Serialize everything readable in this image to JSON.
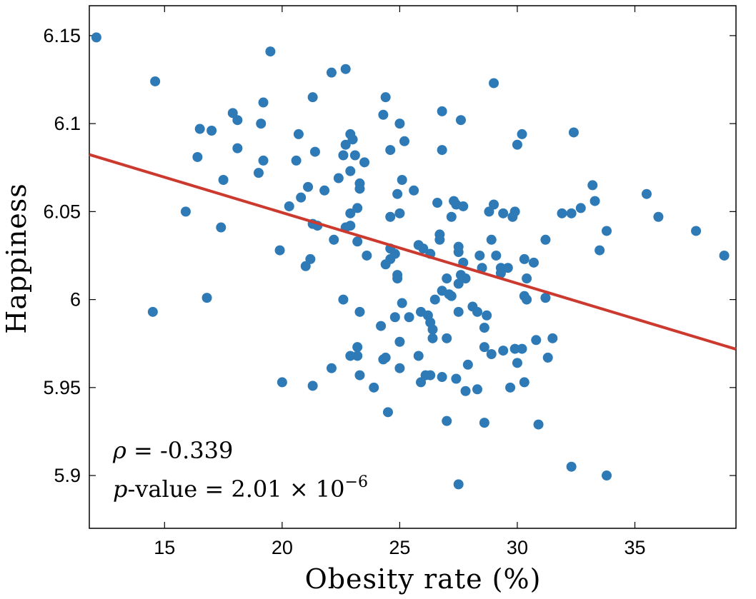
{
  "chart_data": {
    "type": "scatter",
    "title": "",
    "xlabel": "Obesity rate (%)",
    "ylabel": "Happiness",
    "xlim": [
      11.8,
      39.3
    ],
    "ylim": [
      5.87,
      6.167
    ],
    "xticks": [
      15,
      20,
      25,
      30,
      35
    ],
    "xtick_labels": [
      "15",
      "20",
      "25",
      "30",
      "35"
    ],
    "yticks": [
      5.9,
      5.95,
      6.0,
      6.05,
      6.1,
      6.15
    ],
    "ytick_labels": [
      "5.9",
      "5.95",
      "6",
      "6.05",
      "6.1",
      "6.15"
    ],
    "grid": false,
    "colors": {
      "points": "#2e7ab6",
      "fit_line": "#cc3a2f",
      "axes": "#000000"
    },
    "fit_line": {
      "x": [
        11.8,
        39.3
      ],
      "y": [
        6.0824,
        5.9718
      ]
    },
    "annotations": {
      "rho_symbol": "ρ",
      "rho_rest": " = -0.339",
      "p_symbol": "p",
      "p_rest": "-value = 2.01 × 10",
      "p_exponent": "−6"
    },
    "points": [
      [
        12.1,
        6.149
      ],
      [
        14.6,
        6.124
      ],
      [
        14.5,
        5.993
      ],
      [
        15.9,
        6.05
      ],
      [
        16.4,
        6.081
      ],
      [
        16.5,
        6.097
      ],
      [
        16.8,
        6.001
      ],
      [
        17.0,
        6.096
      ],
      [
        17.4,
        6.041
      ],
      [
        17.5,
        6.068
      ],
      [
        17.9,
        6.106
      ],
      [
        18.1,
        6.102
      ],
      [
        18.1,
        6.086
      ],
      [
        19.0,
        6.072
      ],
      [
        19.1,
        6.1
      ],
      [
        19.2,
        6.112
      ],
      [
        19.2,
        6.079
      ],
      [
        19.5,
        6.141
      ],
      [
        19.9,
        6.028
      ],
      [
        20.0,
        5.953
      ],
      [
        20.3,
        6.053
      ],
      [
        20.6,
        6.079
      ],
      [
        20.7,
        6.094
      ],
      [
        20.8,
        6.058
      ],
      [
        21.0,
        6.019
      ],
      [
        21.1,
        6.064
      ],
      [
        21.2,
        6.023
      ],
      [
        21.3,
        6.115
      ],
      [
        21.3,
        6.043
      ],
      [
        21.3,
        5.951
      ],
      [
        21.4,
        6.084
      ],
      [
        21.5,
        6.042
      ],
      [
        21.8,
        6.062
      ],
      [
        22.1,
        5.961
      ],
      [
        22.1,
        6.129
      ],
      [
        22.2,
        6.034
      ],
      [
        22.4,
        6.069
      ],
      [
        22.6,
        6.082
      ],
      [
        22.6,
        6.0
      ],
      [
        22.7,
        6.131
      ],
      [
        22.7,
        6.041
      ],
      [
        22.7,
        6.088
      ],
      [
        22.9,
        6.094
      ],
      [
        22.9,
        6.073
      ],
      [
        22.9,
        6.049
      ],
      [
        22.9,
        6.042
      ],
      [
        22.9,
        5.968
      ],
      [
        23.0,
        6.091
      ],
      [
        23.1,
        6.082
      ],
      [
        23.2,
        6.052
      ],
      [
        23.2,
        6.033
      ],
      [
        23.2,
        5.973
      ],
      [
        23.2,
        5.968
      ],
      [
        23.3,
        6.066
      ],
      [
        23.3,
        6.063
      ],
      [
        23.3,
        5.993
      ],
      [
        23.3,
        5.957
      ],
      [
        23.5,
        6.078
      ],
      [
        23.6,
        6.025
      ],
      [
        23.9,
        5.95
      ],
      [
        24.2,
        5.985
      ],
      [
        24.3,
        6.105
      ],
      [
        24.3,
        5.966
      ],
      [
        24.4,
        6.115
      ],
      [
        24.4,
        6.02
      ],
      [
        24.4,
        5.967
      ],
      [
        24.5,
        5.936
      ],
      [
        24.6,
        6.085
      ],
      [
        24.6,
        6.047
      ],
      [
        24.6,
        6.029
      ],
      [
        24.6,
        6.023
      ],
      [
        24.8,
        6.026
      ],
      [
        24.8,
        5.99
      ],
      [
        24.9,
        6.06
      ],
      [
        24.9,
        6.014
      ],
      [
        24.9,
        6.012
      ],
      [
        25.0,
        6.1
      ],
      [
        25.0,
        6.049
      ],
      [
        25.0,
        5.976
      ],
      [
        25.0,
        5.961
      ],
      [
        25.1,
        6.068
      ],
      [
        25.1,
        5.998
      ],
      [
        25.2,
        6.09
      ],
      [
        25.4,
        5.99
      ],
      [
        25.6,
        6.062
      ],
      [
        25.8,
        6.031
      ],
      [
        25.8,
        5.968
      ],
      [
        25.9,
        5.953
      ],
      [
        25.9,
        5.993
      ],
      [
        26.0,
        6.029
      ],
      [
        26.1,
        5.957
      ],
      [
        26.2,
        5.991
      ],
      [
        26.3,
        6.026
      ],
      [
        26.3,
        5.987
      ],
      [
        26.3,
        5.957
      ],
      [
        26.4,
        5.978
      ],
      [
        26.4,
        5.983
      ],
      [
        26.5,
        6.0
      ],
      [
        26.6,
        6.055
      ],
      [
        26.7,
        6.037
      ],
      [
        26.7,
        6.034
      ],
      [
        26.8,
        6.005
      ],
      [
        26.8,
        5.956
      ],
      [
        26.8,
        6.107
      ],
      [
        26.8,
        6.085
      ],
      [
        27.0,
        6.012
      ],
      [
        27.0,
        5.978
      ],
      [
        27.0,
        5.931
      ],
      [
        27.1,
        6.003
      ],
      [
        27.2,
        6.002
      ],
      [
        27.2,
        6.047
      ],
      [
        27.3,
        6.056
      ],
      [
        27.4,
        6.054
      ],
      [
        27.4,
        5.955
      ],
      [
        27.5,
        6.03
      ],
      [
        27.5,
        6.027
      ],
      [
        27.5,
        6.009
      ],
      [
        27.5,
        5.993
      ],
      [
        27.5,
        5.895
      ],
      [
        27.6,
        6.102
      ],
      [
        27.6,
        6.014
      ],
      [
        27.7,
        6.021
      ],
      [
        27.7,
        6.053
      ],
      [
        27.8,
        6.012
      ],
      [
        27.8,
        5.948
      ],
      [
        27.9,
        5.963
      ],
      [
        28.1,
        5.996
      ],
      [
        28.3,
        5.993
      ],
      [
        28.3,
        5.949
      ],
      [
        28.4,
        6.025
      ],
      [
        28.5,
        6.018
      ],
      [
        28.6,
        5.973
      ],
      [
        28.6,
        5.93
      ],
      [
        28.6,
        5.984
      ],
      [
        28.7,
        5.991
      ],
      [
        28.8,
        6.05
      ],
      [
        28.9,
        5.969
      ],
      [
        28.9,
        6.034
      ],
      [
        29.0,
        6.054
      ],
      [
        29.0,
        6.123
      ],
      [
        29.1,
        6.025
      ],
      [
        29.3,
        6.018
      ],
      [
        29.3,
        6.015
      ],
      [
        29.4,
        6.049
      ],
      [
        29.4,
        5.971
      ],
      [
        29.6,
        6.018
      ],
      [
        29.7,
        5.95
      ],
      [
        29.8,
        6.047
      ],
      [
        29.9,
        5.972
      ],
      [
        29.9,
        6.05
      ],
      [
        30.0,
        6.088
      ],
      [
        30.0,
        5.964
      ],
      [
        30.2,
        5.972
      ],
      [
        30.2,
        6.094
      ],
      [
        30.3,
        6.023
      ],
      [
        30.3,
        6.002
      ],
      [
        30.3,
        5.953
      ],
      [
        30.4,
        6.012
      ],
      [
        30.4,
        6.0
      ],
      [
        30.7,
        6.021
      ],
      [
        30.8,
        5.977
      ],
      [
        30.9,
        5.929
      ],
      [
        31.2,
        6.001
      ],
      [
        31.2,
        6.034
      ],
      [
        31.3,
        5.967
      ],
      [
        31.5,
        5.978
      ],
      [
        31.9,
        6.049
      ],
      [
        32.3,
        6.049
      ],
      [
        32.3,
        5.905
      ],
      [
        32.4,
        6.095
      ],
      [
        32.7,
        6.052
      ],
      [
        33.2,
        6.065
      ],
      [
        33.3,
        6.056
      ],
      [
        33.5,
        6.028
      ],
      [
        33.8,
        5.9
      ],
      [
        33.8,
        6.039
      ],
      [
        35.5,
        6.06
      ],
      [
        36.0,
        6.047
      ],
      [
        37.6,
        6.039
      ],
      [
        38.8,
        6.025
      ]
    ]
  }
}
